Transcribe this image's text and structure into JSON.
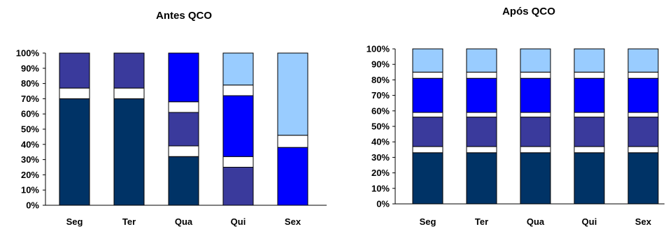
{
  "colors": {
    "dark_navy": "#003366",
    "indigo": "#3A3A9C",
    "blue": "#0000FF",
    "light_blue": "#99CCFF",
    "gap": "#FFFFFF"
  },
  "chart_data": [
    {
      "type": "bar",
      "stacked": true,
      "title": "Antes QCO",
      "categories": [
        "Seg",
        "Ter",
        "Qua",
        "Qui",
        "Sex"
      ],
      "yticks": [
        "0%",
        "10%",
        "20%",
        "30%",
        "40%",
        "50%",
        "60%",
        "70%",
        "80%",
        "90%",
        "100%"
      ],
      "ylim": [
        0,
        100
      ],
      "grid": false,
      "stacks": [
        [
          {
            "v": 70,
            "c": "dark_navy"
          },
          {
            "v": 7,
            "c": "gap"
          },
          {
            "v": 23,
            "c": "indigo"
          }
        ],
        [
          {
            "v": 70,
            "c": "dark_navy"
          },
          {
            "v": 7,
            "c": "gap"
          },
          {
            "v": 23,
            "c": "indigo"
          }
        ],
        [
          {
            "v": 32,
            "c": "dark_navy"
          },
          {
            "v": 7,
            "c": "gap"
          },
          {
            "v": 22,
            "c": "indigo"
          },
          {
            "v": 7,
            "c": "gap"
          },
          {
            "v": 32,
            "c": "blue"
          }
        ],
        [
          {
            "v": 25,
            "c": "indigo"
          },
          {
            "v": 7,
            "c": "gap"
          },
          {
            "v": 40,
            "c": "blue"
          },
          {
            "v": 7,
            "c": "gap"
          },
          {
            "v": 21,
            "c": "light_blue"
          }
        ],
        [
          {
            "v": 38,
            "c": "blue"
          },
          {
            "v": 8,
            "c": "gap"
          },
          {
            "v": 54,
            "c": "light_blue"
          }
        ]
      ]
    },
    {
      "type": "bar",
      "stacked": true,
      "title": "Após QCO",
      "categories": [
        "Seg",
        "Ter",
        "Qua",
        "Qui",
        "Sex"
      ],
      "yticks": [
        "0%",
        "10%",
        "20%",
        "30%",
        "40%",
        "50%",
        "60%",
        "70%",
        "80%",
        "90%",
        "100%"
      ],
      "ylim": [
        0,
        100
      ],
      "grid": false,
      "stacks": [
        [
          {
            "v": 33,
            "c": "dark_navy"
          },
          {
            "v": 4,
            "c": "gap"
          },
          {
            "v": 19,
            "c": "indigo"
          },
          {
            "v": 3,
            "c": "gap"
          },
          {
            "v": 22,
            "c": "blue"
          },
          {
            "v": 4,
            "c": "gap"
          },
          {
            "v": 15,
            "c": "light_blue"
          }
        ],
        [
          {
            "v": 33,
            "c": "dark_navy"
          },
          {
            "v": 4,
            "c": "gap"
          },
          {
            "v": 19,
            "c": "indigo"
          },
          {
            "v": 3,
            "c": "gap"
          },
          {
            "v": 22,
            "c": "blue"
          },
          {
            "v": 4,
            "c": "gap"
          },
          {
            "v": 15,
            "c": "light_blue"
          }
        ],
        [
          {
            "v": 33,
            "c": "dark_navy"
          },
          {
            "v": 4,
            "c": "gap"
          },
          {
            "v": 19,
            "c": "indigo"
          },
          {
            "v": 3,
            "c": "gap"
          },
          {
            "v": 22,
            "c": "blue"
          },
          {
            "v": 4,
            "c": "gap"
          },
          {
            "v": 15,
            "c": "light_blue"
          }
        ],
        [
          {
            "v": 33,
            "c": "dark_navy"
          },
          {
            "v": 4,
            "c": "gap"
          },
          {
            "v": 19,
            "c": "indigo"
          },
          {
            "v": 3,
            "c": "gap"
          },
          {
            "v": 22,
            "c": "blue"
          },
          {
            "v": 4,
            "c": "gap"
          },
          {
            "v": 15,
            "c": "light_blue"
          }
        ],
        [
          {
            "v": 33,
            "c": "dark_navy"
          },
          {
            "v": 4,
            "c": "gap"
          },
          {
            "v": 19,
            "c": "indigo"
          },
          {
            "v": 3,
            "c": "gap"
          },
          {
            "v": 22,
            "c": "blue"
          },
          {
            "v": 4,
            "c": "gap"
          },
          {
            "v": 15,
            "c": "light_blue"
          }
        ]
      ]
    }
  ]
}
